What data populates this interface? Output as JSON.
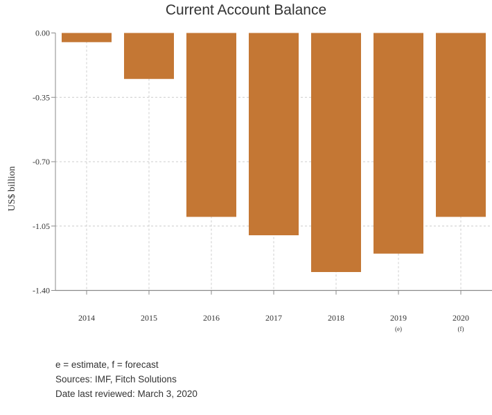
{
  "chart_data": {
    "type": "bar",
    "title": "Current Account Balance",
    "ylabel": "US$ billion",
    "xlabel": "",
    "categories": [
      "2014",
      "2015",
      "2016",
      "2017",
      "2018",
      "2019",
      "2020"
    ],
    "category_sublabels": [
      "",
      "",
      "",
      "",
      "",
      "(e)",
      "(f)"
    ],
    "values": [
      -0.05,
      -0.25,
      -1.0,
      -1.1,
      -1.3,
      -1.2,
      -1.0
    ],
    "ylim": [
      -1.4,
      0.0
    ],
    "yticks": [
      "0.00",
      "-0.35",
      "-0.70",
      "-1.05",
      "-1.40"
    ],
    "grid": true,
    "bar_color": "#c47734"
  },
  "notes": {
    "legend": "e = estimate, f = forecast",
    "sources": "Sources: IMF, Fitch Solutions",
    "reviewed": "Date last reviewed: March 3, 2020"
  }
}
